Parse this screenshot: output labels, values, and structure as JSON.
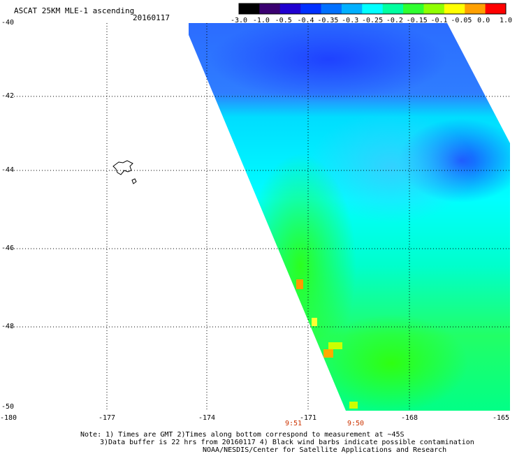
{
  "header": {
    "title": "ASCAT 25KM MLE-1 ascending",
    "date": "20160117"
  },
  "colorbar": {
    "labels": [
      "-3.0",
      "-1.0",
      "-0.5",
      "-0.4",
      "-0.35",
      "-0.3",
      "-0.25",
      "-0.2",
      "-0.15",
      "-0.1",
      "-0.05",
      "0.0",
      "1.0"
    ],
    "colors": [
      "#000000",
      "#3a0070",
      "#2000d0",
      "#0030ff",
      "#0070ff",
      "#00b0ff",
      "#00ffff",
      "#00ffa0",
      "#30ff30",
      "#90ff00",
      "#ffff00",
      "#ffa000",
      "#ff0000"
    ]
  },
  "axes": {
    "x_ticks": [
      "-180",
      "-177",
      "-174",
      "-171",
      "-168",
      "-165"
    ],
    "y_ticks": [
      "-40",
      "-42",
      "-44",
      "-46",
      "-48",
      "-50"
    ]
  },
  "swath_times": [
    "9:51",
    "9:50"
  ],
  "notes": {
    "line1": "Note: 1) Times are GMT 2)Times along bottom correspond to measurement at ~45S",
    "line2": "3)Data buffer is 22 hrs from 20160117 4) Black wind barbs indicate possible contamination",
    "line3": "NOAA/NESDIS/Center for Satellite Applications and Research"
  }
}
